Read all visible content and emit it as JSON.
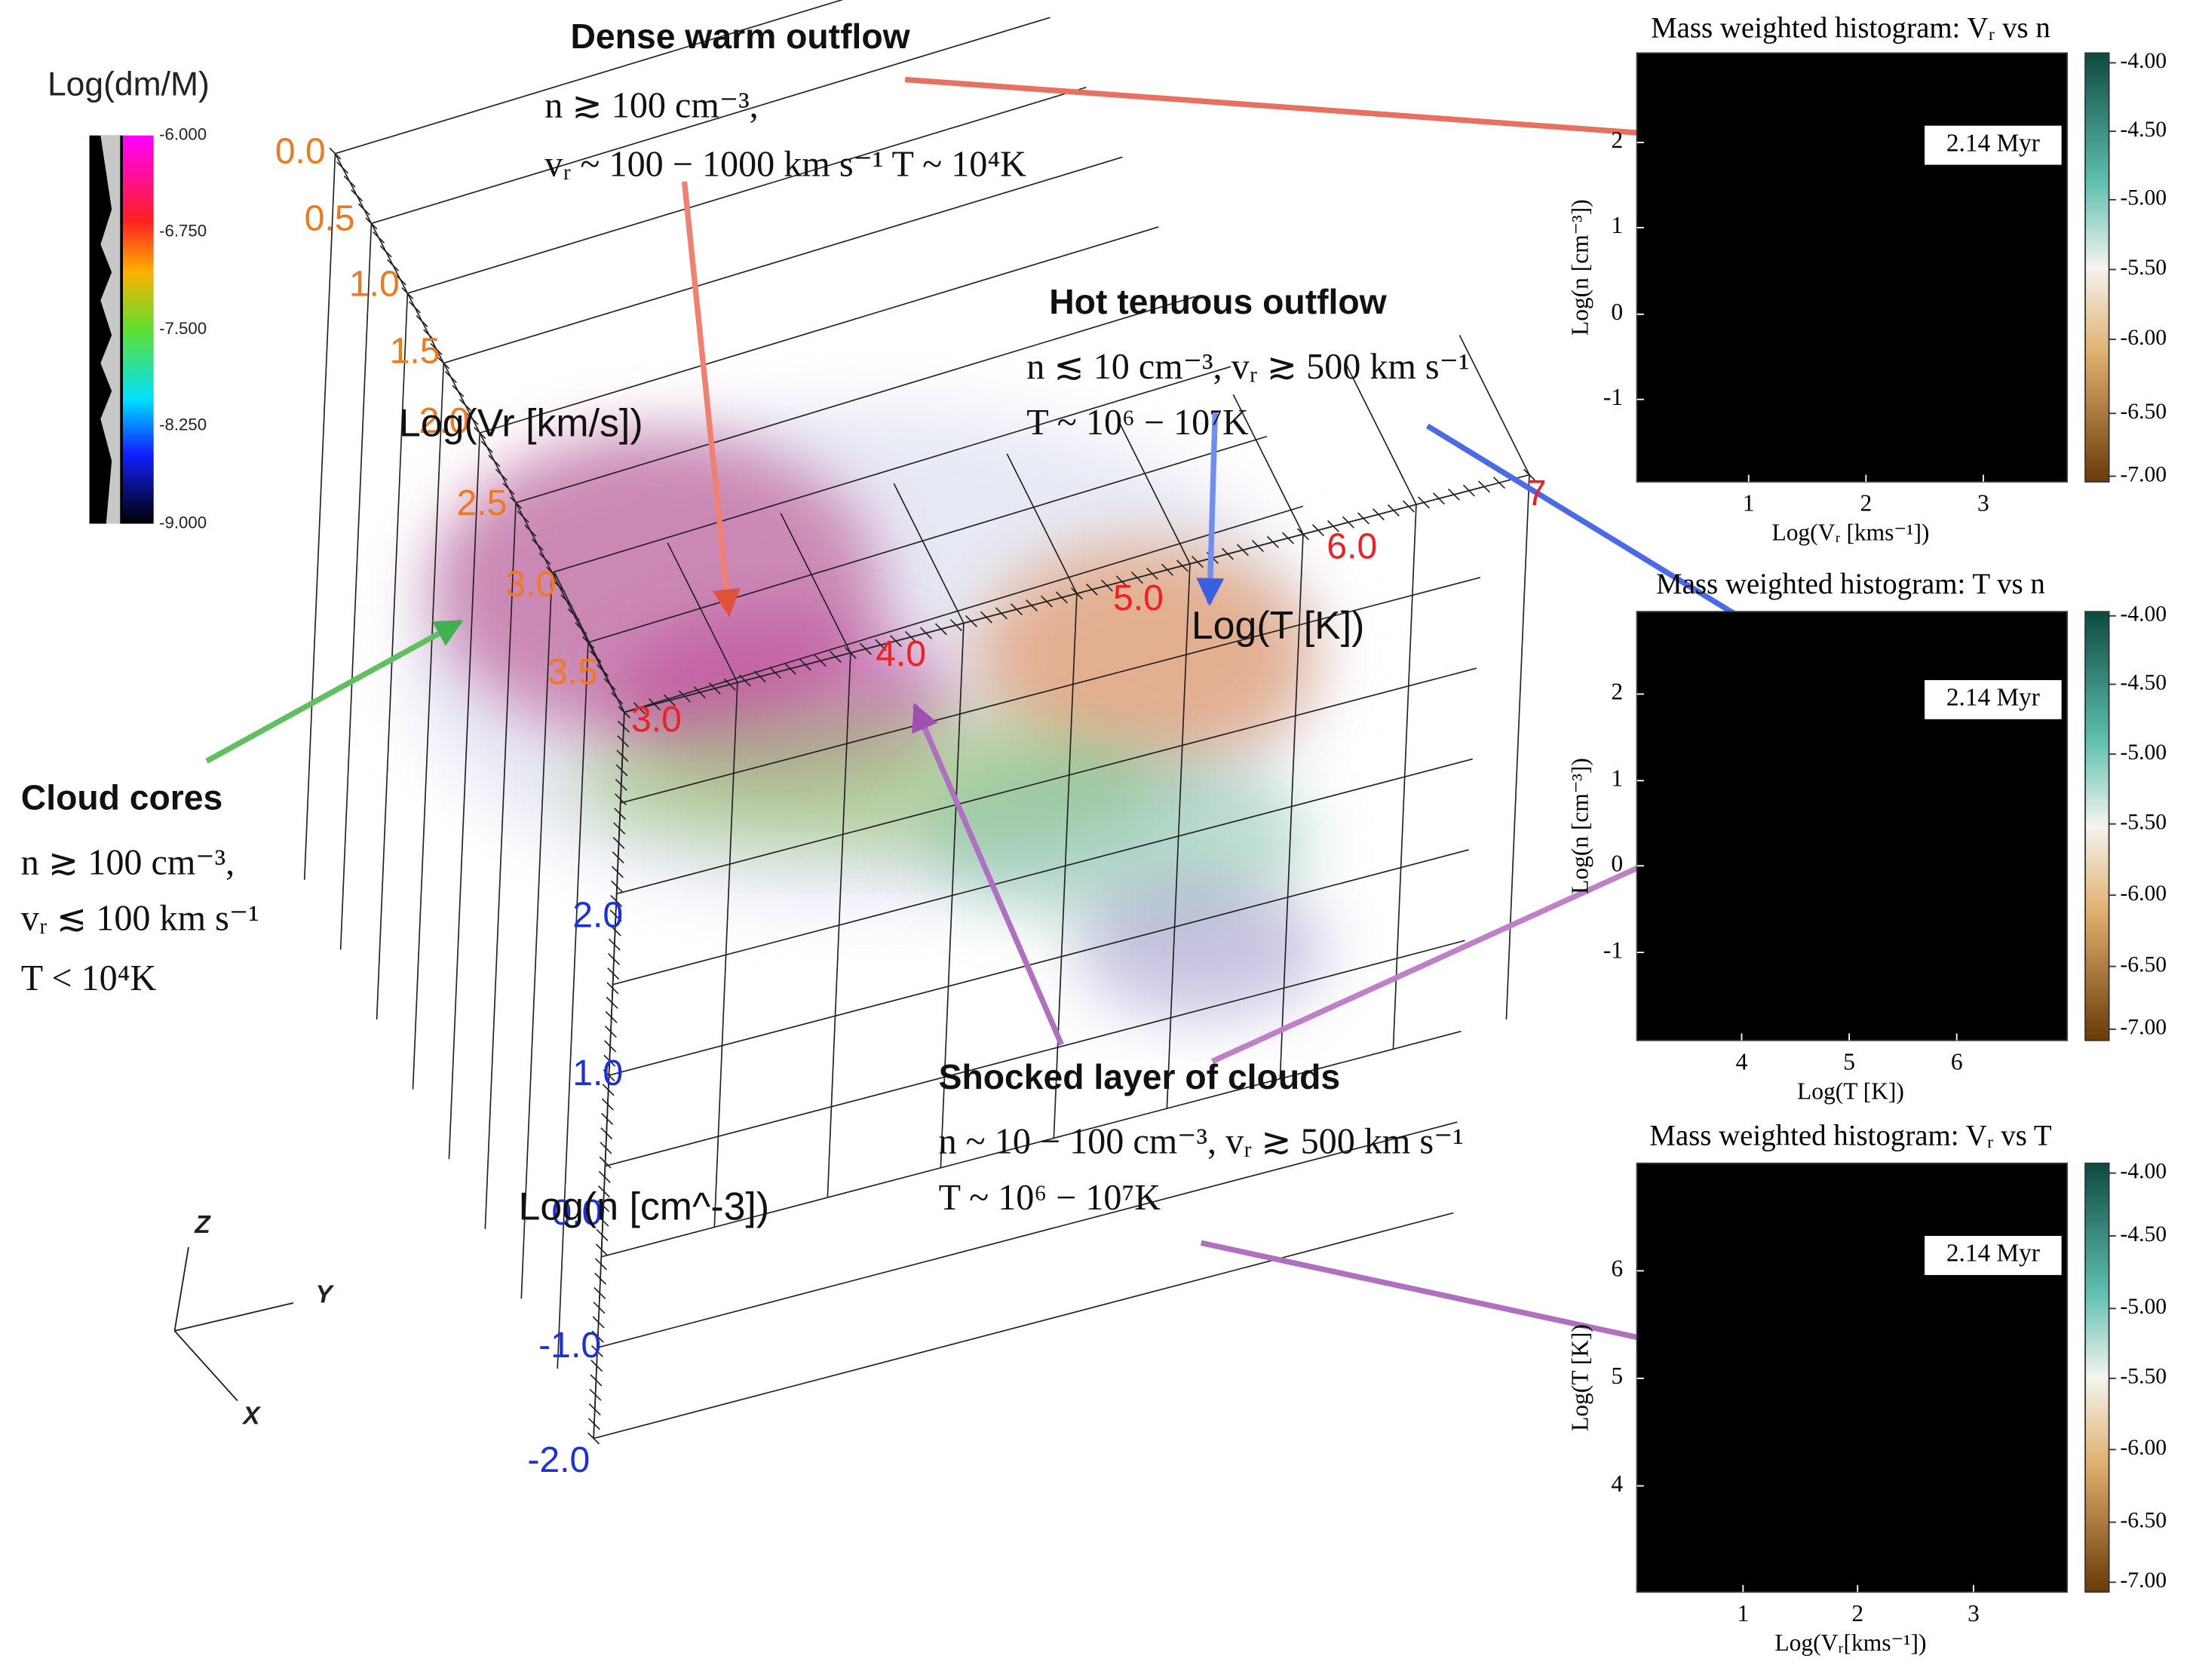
{
  "colorbar": {
    "title": "Log(dm/M)",
    "ticks": [
      "-6.000",
      "-6.750",
      "-7.500",
      "-8.250",
      "-9.000"
    ]
  },
  "volume_plot": {
    "axis_titles": {
      "vr": "Log(Vr [km/s])",
      "t": "Log(T [K])",
      "n": "Log(n [cm^-3])"
    },
    "vr_ticks": [
      "0.0",
      "0.5",
      "1.0",
      "1.5",
      "2.0",
      "2.5",
      "3.0",
      "3.5"
    ],
    "t_ticks": [
      "3.0",
      "4.0",
      "5.0",
      "6.0",
      "7"
    ],
    "n_ticks": [
      "2.0",
      "1.0",
      "0.0",
      "-1.0",
      "-2.0"
    ],
    "orientation": [
      "Z",
      "Y",
      "X"
    ]
  },
  "annotations": [
    {
      "title": "Dense warm outflow",
      "lines": [
        "n ≳ 100 cm⁻³,",
        "vᵣ ~ 100 − 1000 km s⁻¹ T ~ 10⁴K"
      ]
    },
    {
      "title": "Hot tenuous outflow",
      "lines": [
        "n ≲ 10 cm⁻³,  vᵣ ≳ 500 km s⁻¹",
        "T ~ 10⁶ − 10⁷K"
      ]
    },
    {
      "title": "Cloud cores",
      "lines": [
        "n ≳ 100 cm⁻³,",
        "vᵣ ≲ 100 km s⁻¹",
        "T < 10⁴K"
      ]
    },
    {
      "title": "Shocked layer of clouds",
      "lines": [
        "n ~ 10 − 100 cm⁻³,  vᵣ ≳ 500 km s⁻¹",
        "T ~ 10⁶ − 10⁷K"
      ]
    }
  ],
  "histograms": [
    {
      "title": "Mass weighted histogram: Vᵣ vs n",
      "xlabel": "Log(Vᵣ [kms⁻¹])",
      "ylabel": "Log(n [cm⁻³])",
      "xticks": [
        "1",
        "2",
        "3"
      ],
      "yticks": [
        "2",
        "1",
        "0",
        "-1"
      ],
      "time": "2.14 Myr",
      "colorbar_ticks": [
        "-4.00",
        "-4.50",
        "-5.00",
        "-5.50",
        "-6.00",
        "-6.50",
        "-7.00"
      ]
    },
    {
      "title": "Mass weighted histogram: T vs n",
      "xlabel": "Log(T [K])",
      "ylabel": "Log(n [cm⁻³])",
      "xticks": [
        "4",
        "5",
        "6"
      ],
      "yticks": [
        "2",
        "1",
        "0",
        "-1"
      ],
      "time": "2.14 Myr",
      "colorbar_ticks": [
        "-4.00",
        "-4.50",
        "-5.00",
        "-5.50",
        "-6.00",
        "-6.50",
        "-7.00"
      ]
    },
    {
      "title": "Mass weighted histogram: Vᵣ vs T",
      "xlabel": "Log(Vᵣ[kms⁻¹])",
      "ylabel": "Log(T [K])",
      "xticks": [
        "1",
        "2",
        "3"
      ],
      "yticks": [
        "6",
        "5",
        "4"
      ],
      "time": "2.14 Myr",
      "colorbar_ticks": [
        "-4.00",
        "-4.50",
        "-5.00",
        "-5.50",
        "-6.00",
        "-6.50",
        "-7.00"
      ]
    }
  ]
}
